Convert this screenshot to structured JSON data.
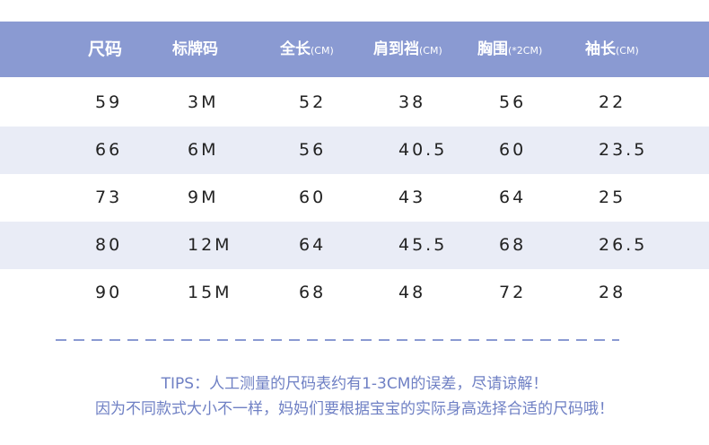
{
  "table": {
    "header": [
      {
        "label": "尺码",
        "unit": ""
      },
      {
        "label": "标牌码",
        "unit": ""
      },
      {
        "label": "全长",
        "unit": "(CM)"
      },
      {
        "label": "肩到裆",
        "unit": "(CM)"
      },
      {
        "label": "胸围",
        "unit": "(*2CM)"
      },
      {
        "label": "袖长",
        "unit": "(CM)"
      }
    ],
    "rows": [
      [
        "59",
        "3M",
        "52",
        "38",
        "56",
        "22"
      ],
      [
        "66",
        "6M",
        "56",
        "40.5",
        "60",
        "23.5"
      ],
      [
        "73",
        "9M",
        "60",
        "43",
        "64",
        "25"
      ],
      [
        "80",
        "12M",
        "64",
        "45.5",
        "68",
        "26.5"
      ],
      [
        "90",
        "15M",
        "68",
        "48",
        "72",
        "28"
      ]
    ]
  },
  "tips": {
    "line1": "TIPS：人工测量的尺码表约有1-3CM的误差，尽请谅解！",
    "line2": "因为不同款式大小不一样，妈妈们要根据宝宝的实际身高选择合适的尺码哦！"
  },
  "colors": {
    "header_bg": "#8a9ad2",
    "alt_row_bg": "#e9ecf6",
    "tips_text": "#6f80c4"
  }
}
